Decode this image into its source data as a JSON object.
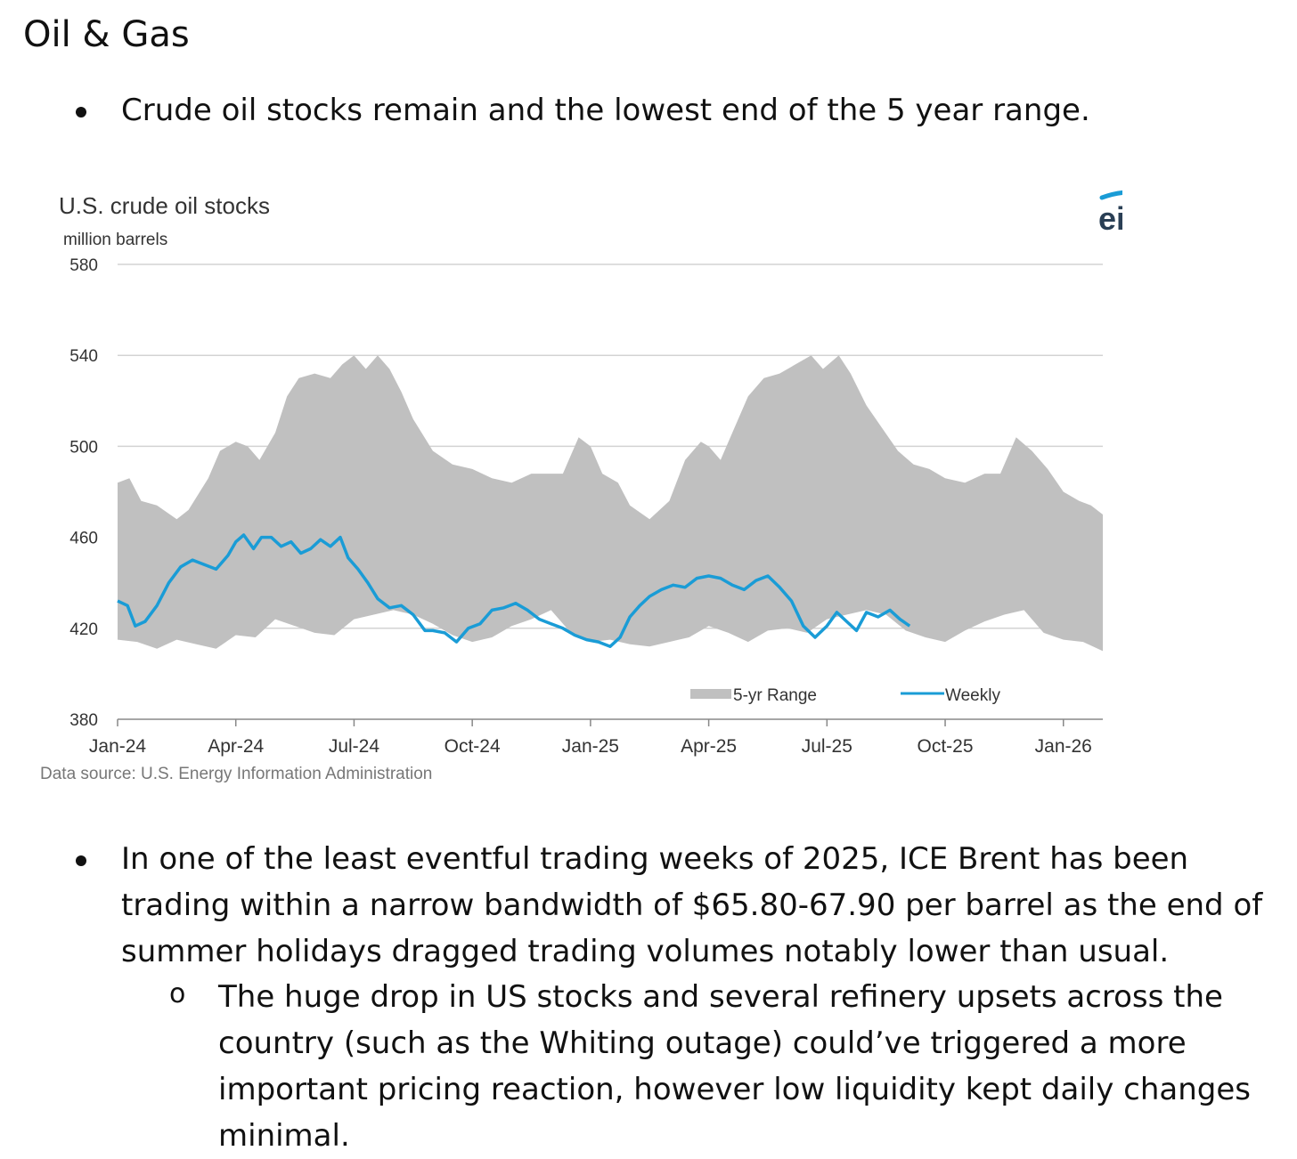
{
  "heading": "Oil & Gas",
  "bullet1": "Crude oil stocks remain and the lowest end of the 5 year range.",
  "bullet2_lines": [
    "In one of the least eventful trading weeks of 2025, ICE Brent has been",
    "trading within a narrow bandwidth of $65.80-67.90 per barrel as the end of",
    "summer holidays dragged trading volumes notably lower than usual."
  ],
  "sub_marker": "o",
  "sub_bullet_lines": [
    "The huge drop in US stocks and several refinery upsets across the",
    "country (such as the Whiting outage) could’ve triggered a more",
    "important pricing reaction, however low liquidity kept daily changes",
    "minimal."
  ],
  "logo_text": "eia",
  "colors": {
    "range": "#c0c0c0",
    "weekly": "#1a9cd6",
    "grid": "#d3d3d3",
    "axis": "#888888",
    "text": "#333333"
  },
  "chart_data": {
    "type": "area",
    "title": "U.S. crude oil stocks",
    "ylabel": "million barrels",
    "source": "Data source: U.S. Energy Information Administration",
    "ylim": [
      380,
      580
    ],
    "yticks": [
      580,
      540,
      500,
      460,
      420,
      380
    ],
    "xlim": [
      0,
      25
    ],
    "x_ticks": [
      0,
      3,
      6,
      9,
      12,
      15,
      18,
      21,
      24
    ],
    "x_labels": [
      "Jan-24",
      "Apr-24",
      "Jul-24",
      "Oct-24",
      "Jan-25",
      "Apr-25",
      "Jul-25",
      "Oct-25",
      "Jan-26"
    ],
    "legend": [
      "5-yr Range",
      "Weekly"
    ],
    "legend_position": "bottom-right",
    "range_upper": {
      "x": [
        0,
        0.3,
        0.6,
        1.0,
        1.5,
        1.8,
        2.3,
        2.6,
        3.0,
        3.3,
        3.6,
        4.0,
        4.3,
        4.6,
        5.0,
        5.4,
        5.7,
        6.0,
        6.3,
        6.6,
        6.9,
        7.2,
        7.5,
        8.0,
        8.5,
        9.0,
        9.5,
        10.0,
        10.5,
        10.9,
        11.3,
        11.7,
        12.0,
        12.3,
        12.7,
        13.0,
        13.5,
        14.0,
        14.4,
        14.8,
        15.0,
        15.3,
        15.6,
        16.0,
        16.4,
        16.8,
        17.2,
        17.6,
        17.9,
        18.3,
        18.6,
        19.0,
        19.4,
        19.8,
        20.2,
        20.6,
        21.0,
        21.5,
        22.0,
        22.4,
        22.8,
        23.2,
        23.6,
        24.0,
        24.4,
        24.7,
        25.0
      ],
      "y": [
        484,
        486,
        476,
        474,
        468,
        472,
        486,
        498,
        502,
        500,
        494,
        506,
        522,
        530,
        532,
        530,
        536,
        540,
        534,
        540,
        534,
        524,
        512,
        498,
        492,
        490,
        486,
        484,
        488,
        488,
        488,
        504,
        500,
        488,
        484,
        474,
        468,
        476,
        494,
        502,
        500,
        494,
        506,
        522,
        530,
        532,
        536,
        540,
        534,
        540,
        532,
        518,
        508,
        498,
        492,
        490,
        486,
        484,
        488,
        488,
        504,
        498,
        490,
        480,
        476,
        474,
        470
      ]
    },
    "range_lower": {
      "x": [
        0,
        0.5,
        1.0,
        1.5,
        2.0,
        2.5,
        3.0,
        3.5,
        4.0,
        4.5,
        5.0,
        5.5,
        6.0,
        6.5,
        7.0,
        7.5,
        8.0,
        8.5,
        9.0,
        9.5,
        10.0,
        10.5,
        11.0,
        11.5,
        12.0,
        12.5,
        13.0,
        13.5,
        14.0,
        14.5,
        15.0,
        15.5,
        16.0,
        16.5,
        17.0,
        17.5,
        18.0,
        18.5,
        19.0,
        19.5,
        20.0,
        20.5,
        21.0,
        21.5,
        22.0,
        22.5,
        23.0,
        23.5,
        24.0,
        24.5,
        25.0
      ],
      "y": [
        415,
        414,
        411,
        415,
        413,
        411,
        417,
        416,
        424,
        421,
        418,
        417,
        424,
        426,
        428,
        426,
        422,
        417,
        414,
        416,
        421,
        424,
        428,
        418,
        414,
        415,
        413,
        412,
        414,
        416,
        421,
        418,
        414,
        419,
        420,
        418,
        424,
        426,
        428,
        426,
        419,
        416,
        414,
        419,
        423,
        426,
        428,
        418,
        415,
        414,
        410
      ]
    },
    "weekly": {
      "x": [
        0,
        0.25,
        0.45,
        0.7,
        1.0,
        1.3,
        1.6,
        1.9,
        2.2,
        2.5,
        2.8,
        3.0,
        3.2,
        3.45,
        3.65,
        3.9,
        4.15,
        4.4,
        4.65,
        4.9,
        5.15,
        5.4,
        5.65,
        5.85,
        6.1,
        6.35,
        6.6,
        6.9,
        7.2,
        7.5,
        7.8,
        8.0,
        8.3,
        8.6,
        8.9,
        9.2,
        9.5,
        9.8,
        10.1,
        10.4,
        10.7,
        11.0,
        11.3,
        11.6,
        11.9,
        12.2,
        12.5,
        12.75,
        13.0,
        13.25,
        13.5,
        13.8,
        14.1,
        14.4,
        14.7,
        15.0,
        15.3,
        15.6,
        15.9,
        16.2,
        16.5,
        16.8,
        17.1,
        17.4,
        17.7,
        18.0,
        18.25,
        18.5,
        18.75,
        19.0,
        19.3,
        19.6,
        19.85,
        20.1
      ],
      "y": [
        432,
        430,
        421,
        423,
        430,
        440,
        447,
        450,
        448,
        446,
        452,
        458,
        461,
        455,
        460,
        460,
        456,
        458,
        453,
        455,
        459,
        456,
        460,
        451,
        446,
        440,
        433,
        429,
        430,
        426,
        419,
        419,
        418,
        414,
        420,
        422,
        428,
        429,
        431,
        428,
        424,
        422,
        420,
        417,
        415,
        414,
        412,
        416,
        425,
        430,
        434,
        437,
        439,
        438,
        442,
        443,
        442,
        439,
        437,
        441,
        443,
        438,
        432,
        421,
        416,
        421,
        427,
        423,
        419,
        427,
        425,
        428,
        424,
        421
      ]
    }
  }
}
